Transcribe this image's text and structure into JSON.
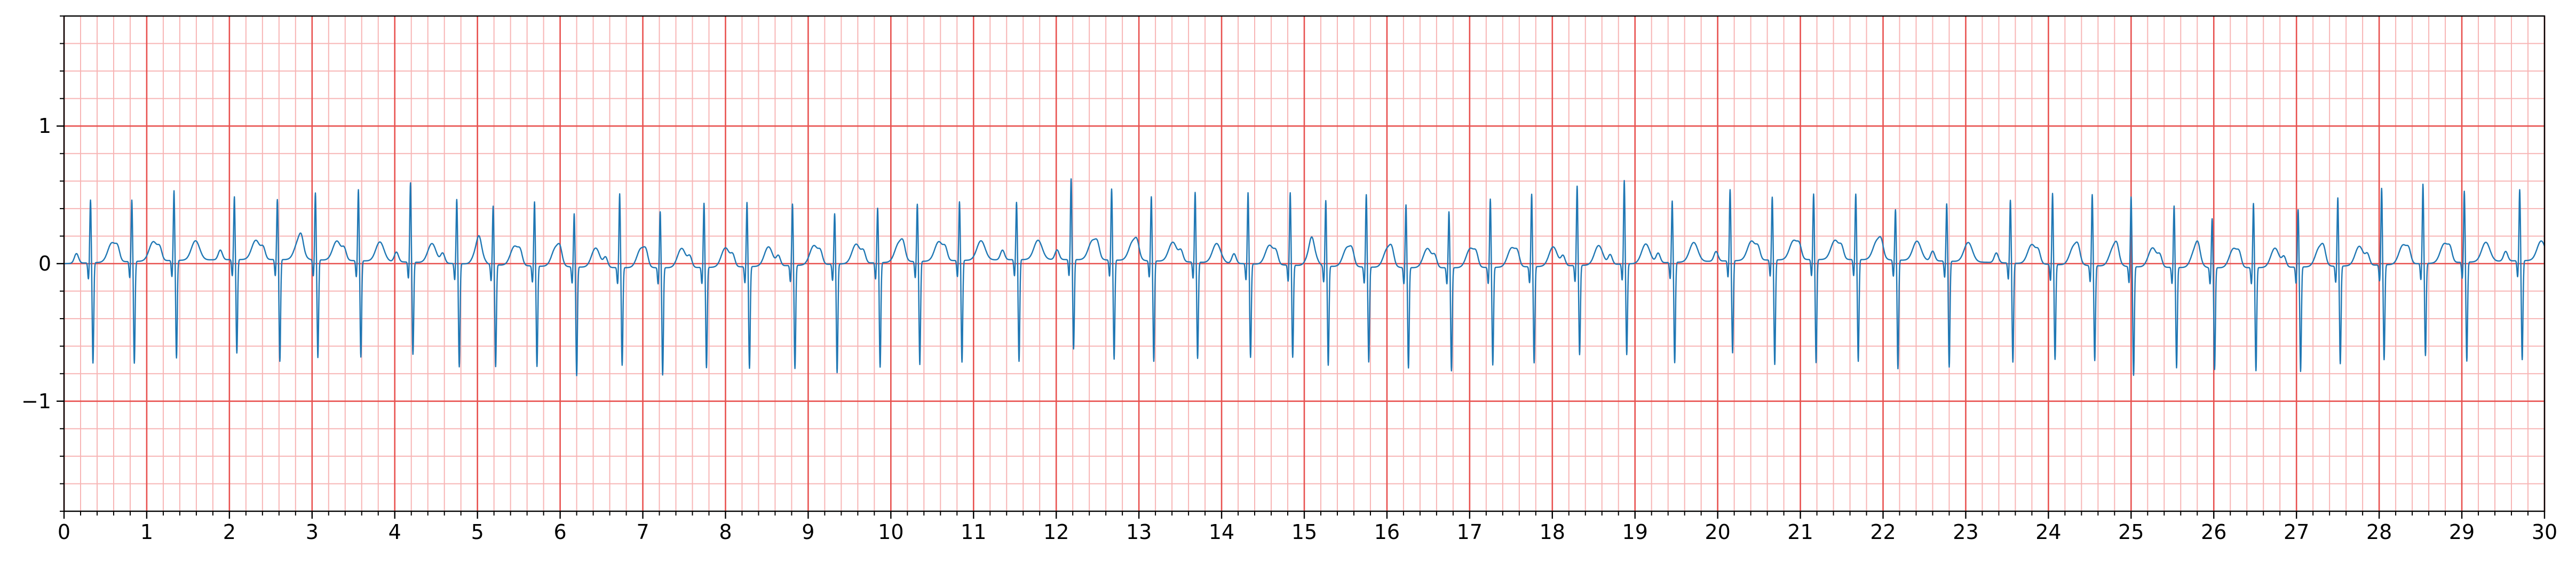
{
  "chart_data": {
    "type": "line",
    "title": "",
    "xlabel": "",
    "ylabel": "",
    "xlim": [
      0,
      30
    ],
    "ylim": [
      -1.8,
      1.8
    ],
    "x_ticks": [
      0,
      1,
      2,
      3,
      4,
      5,
      6,
      7,
      8,
      9,
      10,
      11,
      12,
      13,
      14,
      15,
      16,
      17,
      18,
      19,
      20,
      21,
      22,
      23,
      24,
      25,
      26,
      27,
      28,
      29,
      30
    ],
    "x_tick_labels": [
      "0",
      "1",
      "2",
      "3",
      "4",
      "5",
      "6",
      "7",
      "8",
      "9",
      "10",
      "11",
      "12",
      "13",
      "14",
      "15",
      "16",
      "17",
      "18",
      "19",
      "20",
      "21",
      "22",
      "23",
      "24",
      "25",
      "26",
      "27",
      "28",
      "29",
      "30"
    ],
    "y_ticks": [
      -1,
      0,
      1
    ],
    "y_tick_labels": [
      "−1",
      "0",
      "1"
    ],
    "x_minor_step": 0.2,
    "y_minor_step": 0.2,
    "grid": {
      "major": true,
      "minor": true
    },
    "colors": {
      "major_grid": "#e8514f",
      "minor_grid": "#f7b5b5",
      "trace": "#1f77b4",
      "axes": "#000000"
    },
    "series": [
      {
        "name": "",
        "beat_times": [
          0.32,
          0.82,
          1.33,
          2.06,
          2.58,
          3.04,
          3.56,
          4.19,
          4.75,
          5.19,
          5.69,
          6.17,
          6.72,
          7.21,
          7.74,
          8.26,
          8.81,
          9.32,
          9.84,
          10.32,
          10.83,
          11.52,
          12.18,
          12.67,
          13.15,
          13.68,
          14.32,
          14.83,
          15.26,
          15.75,
          16.23,
          16.75,
          17.25,
          17.75,
          18.3,
          18.87,
          19.45,
          20.15,
          20.66,
          21.16,
          21.67,
          22.15,
          22.77,
          23.54,
          24.05,
          24.53,
          25.0,
          25.52,
          25.98,
          26.48,
          27.02,
          27.5,
          28.03,
          28.53,
          29.03,
          29.7
        ],
        "r_amplitudes": [
          0.46,
          0.45,
          0.51,
          0.46,
          0.44,
          0.49,
          0.52,
          0.58,
          0.47,
          0.43,
          0.47,
          0.39,
          0.54,
          0.41,
          0.47,
          0.47,
          0.45,
          0.37,
          0.4,
          0.42,
          0.43,
          0.42,
          0.59,
          0.52,
          0.47,
          0.51,
          0.52,
          0.53,
          0.48,
          0.53,
          0.46,
          0.41,
          0.5,
          0.53,
          0.58,
          0.61,
          0.45,
          0.52,
          0.46,
          0.48,
          0.48,
          0.37,
          0.42,
          0.46,
          0.52,
          0.52,
          0.51,
          0.45,
          0.36,
          0.47,
          0.42,
          0.5,
          0.56,
          0.58,
          0.52,
          0.52
        ],
        "s_amplitudes": [
          -0.73,
          -0.74,
          -0.71,
          -0.68,
          -0.74,
          -0.71,
          -0.7,
          -0.67,
          -0.75,
          -0.74,
          -0.73,
          -0.79,
          -0.71,
          -0.78,
          -0.73,
          -0.74,
          -0.75,
          -0.79,
          -0.76,
          -0.75,
          -0.74,
          -0.74,
          -0.65,
          -0.72,
          -0.73,
          -0.7,
          -0.68,
          -0.67,
          -0.72,
          -0.69,
          -0.73,
          -0.75,
          -0.71,
          -0.7,
          -0.65,
          -0.66,
          -0.73,
          -0.67,
          -0.76,
          -0.75,
          -0.74,
          -0.79,
          -0.77,
          -0.72,
          -0.69,
          -0.69,
          -0.79,
          -0.73,
          -0.74,
          -0.75,
          -0.76,
          -0.71,
          -0.69,
          -0.67,
          -0.72,
          -0.72
        ]
      }
    ]
  }
}
